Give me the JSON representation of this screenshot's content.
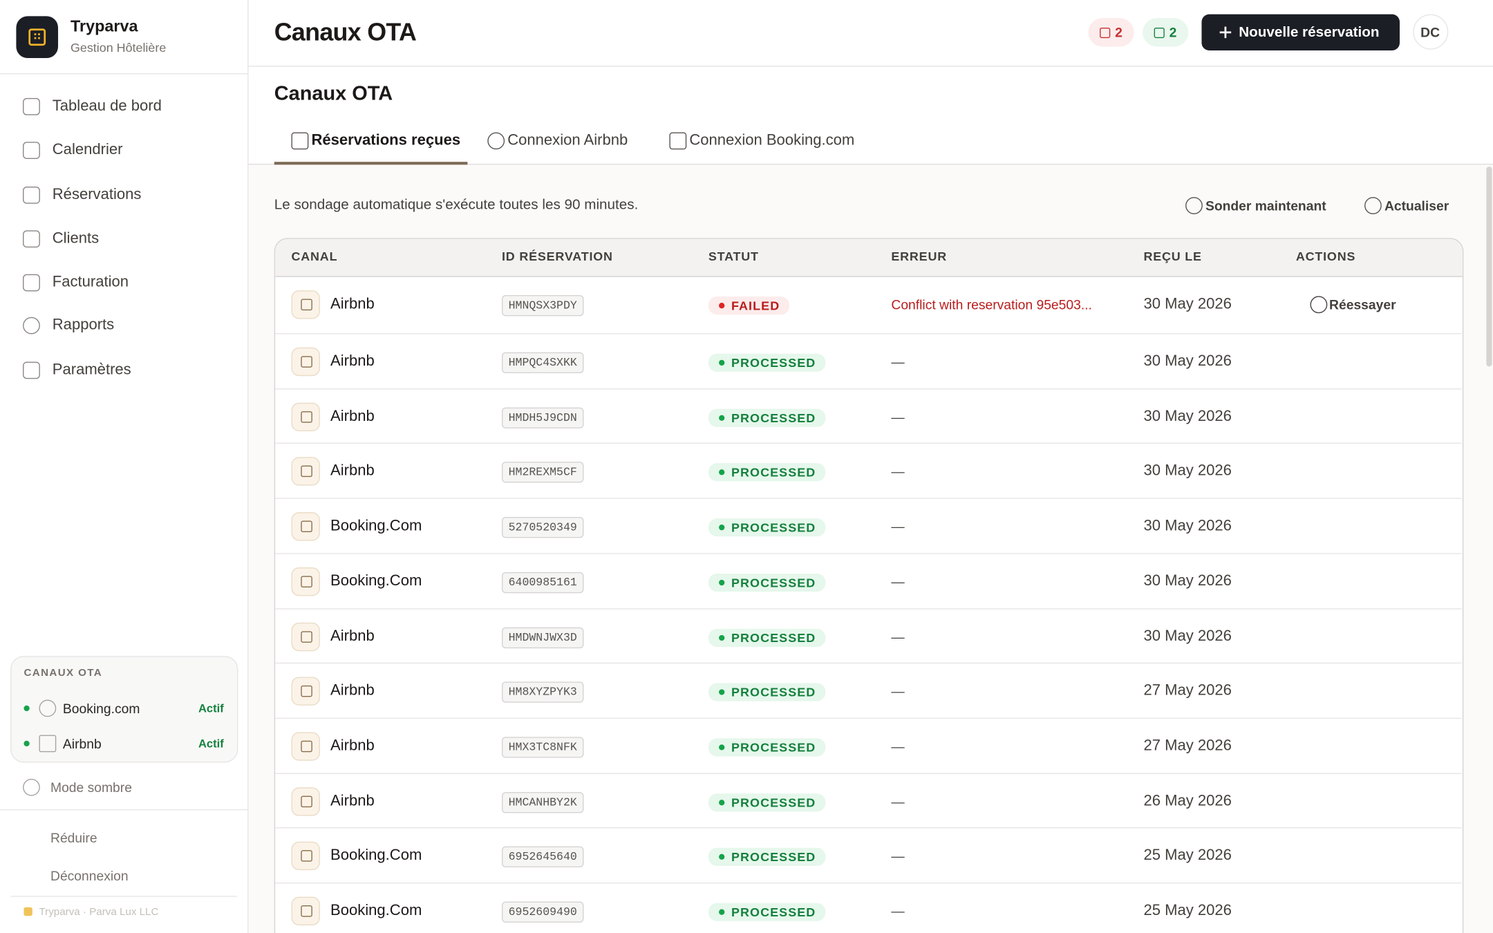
{
  "sidebar": {
    "brand": {
      "name": "Tryparva",
      "subtitle": "Gestion Hôtelière"
    },
    "nav": [
      "Tableau de bord",
      "Calendrier",
      "Réservations",
      "Clients",
      "Facturation",
      "Rapports",
      "Paramètres"
    ],
    "ota": {
      "title": "CANAUX OTA",
      "channels": [
        {
          "name": "Booking.com",
          "status": "Actif"
        },
        {
          "name": "Airbnb",
          "status": "Actif"
        }
      ]
    },
    "dark_mode": "Mode sombre",
    "collapse": "Réduire",
    "logout": "Déconnexion",
    "footer": "Tryparva · Parva Lux LLC"
  },
  "header": {
    "title": "Canaux OTA",
    "badges": [
      "2",
      "2"
    ],
    "new_button": "Nouvelle réservation",
    "avatar": "DC"
  },
  "page": {
    "title": "Canaux OTA",
    "tabs": [
      "Réservations reçues",
      "Connexion Airbnb",
      "Connexion Booking.com"
    ],
    "note": "Le sondage automatique s'exécute toutes les 90 minutes.",
    "poll_button": "Sonder maintenant",
    "refresh_button": "Actualiser"
  },
  "table": {
    "columns": [
      "CANAL",
      "ID RÉSERVATION",
      "STATUT",
      "ERREUR",
      "REÇU LE",
      "ACTIONS"
    ],
    "rows": [
      [
        "Airbnb",
        "HMNQSX3PDY",
        "FAILED",
        "Conflict with reservation 95e503...",
        "30 May 2026",
        "Réessayer"
      ],
      [
        "Airbnb",
        "HMPQC4SXKK",
        "PROCESSED",
        "—",
        "30 May 2026",
        null
      ],
      [
        "Airbnb",
        "HMDH5J9CDN",
        "PROCESSED",
        "—",
        "30 May 2026",
        null
      ],
      [
        "Airbnb",
        "HM2REXM5CF",
        "PROCESSED",
        "—",
        "30 May 2026",
        null
      ],
      [
        "Booking.Com",
        "5270520349",
        "PROCESSED",
        "—",
        "30 May 2026",
        null
      ],
      [
        "Booking.Com",
        "6400985161",
        "PROCESSED",
        "—",
        "30 May 2026",
        null
      ],
      [
        "Airbnb",
        "HMDWNJWX3D",
        "PROCESSED",
        "—",
        "30 May 2026",
        null
      ],
      [
        "Airbnb",
        "HM8XYZPYK3",
        "PROCESSED",
        "—",
        "27 May 2026",
        null
      ],
      [
        "Airbnb",
        "HMX3TC8NFK",
        "PROCESSED",
        "—",
        "27 May 2026",
        null
      ],
      [
        "Airbnb",
        "HMCANHBY2K",
        "PROCESSED",
        "—",
        "26 May 2026",
        null
      ],
      [
        "Booking.Com",
        "6952645640",
        "PROCESSED",
        "—",
        "25 May 2026",
        null
      ],
      [
        "Booking.Com",
        "6952609490",
        "PROCESSED",
        "—",
        "25 May 2026",
        null
      ]
    ]
  }
}
